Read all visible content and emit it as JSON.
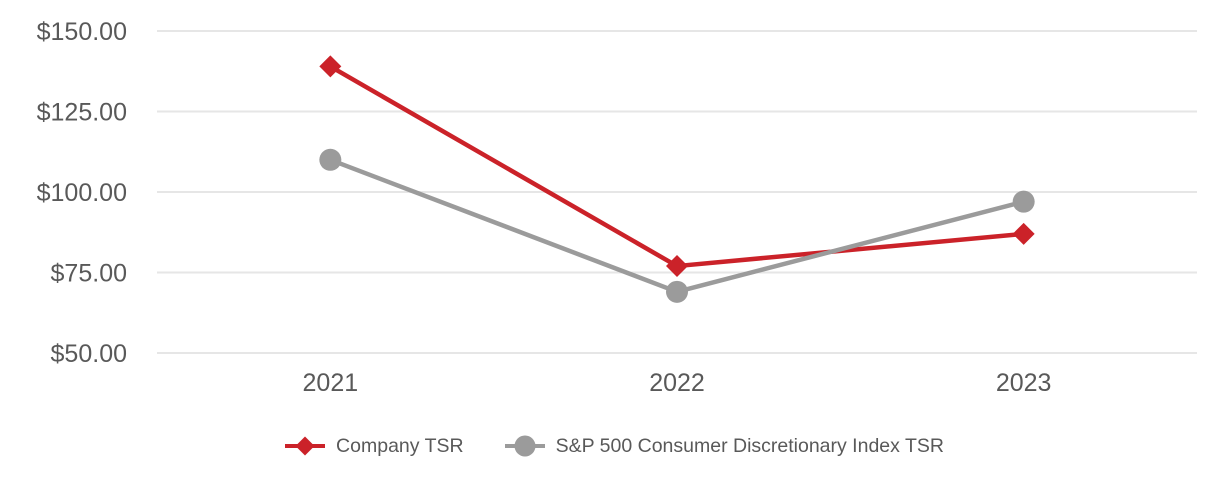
{
  "theme": {
    "background": "#ffffff",
    "text_gray": "#595959",
    "gridline": "#e6e6e6"
  },
  "chart_data": {
    "type": "line",
    "title": "",
    "xlabel": "",
    "ylabel": "",
    "x": [
      "2021",
      "2022",
      "2023"
    ],
    "y_ticks": [
      "$150.00",
      "$125.00",
      "$100.00",
      "$75.00",
      "$50.00"
    ],
    "y_tick_values": [
      150,
      125,
      100,
      75,
      50
    ],
    "ylim": [
      50,
      150
    ],
    "grid": "horizontal-only",
    "legend_position": "bottom-center",
    "series": [
      {
        "name": "Company TSR",
        "values": [
          139,
          77,
          87
        ],
        "color": "#cb2229",
        "marker": "diamond"
      },
      {
        "name": "S&P 500 Consumer Discretionary Index TSR",
        "values": [
          110,
          69,
          97
        ],
        "color": "#9b9b9b",
        "marker": "circle"
      }
    ]
  }
}
